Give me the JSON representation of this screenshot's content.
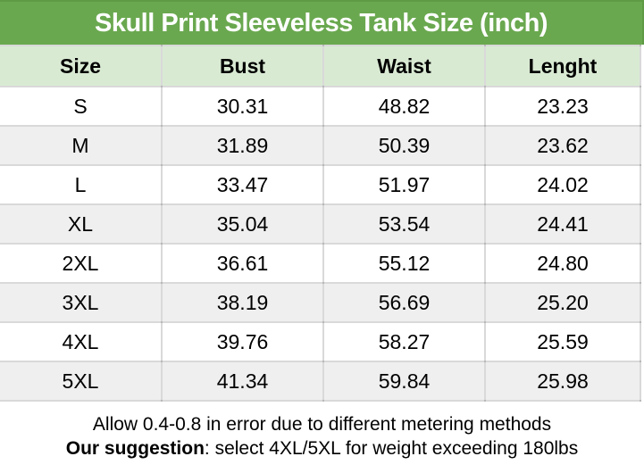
{
  "chart_data": {
    "type": "table",
    "title": "Skull Print Sleeveless Tank Size (inch)",
    "columns": [
      "Size",
      "Bust",
      "Waist",
      "Lenght"
    ],
    "rows": [
      [
        "S",
        "30.31",
        "48.82",
        "23.23"
      ],
      [
        "M",
        "31.89",
        "50.39",
        "23.62"
      ],
      [
        "L",
        "33.47",
        "51.97",
        "24.02"
      ],
      [
        "XL",
        "35.04",
        "53.54",
        "24.41"
      ],
      [
        "2XL",
        "36.61",
        "55.12",
        "24.80"
      ],
      [
        "3XL",
        "38.19",
        "56.69",
        "25.20"
      ],
      [
        "4XL",
        "39.76",
        "58.27",
        "25.59"
      ],
      [
        "5XL",
        "41.34",
        "59.84",
        "25.98"
      ]
    ],
    "footnotes": [
      "Allow 0.4-0.8 in error due to different metering methods",
      "Our suggestion: select 4XL/5XL for weight exceeding 180lbs"
    ],
    "layout": {
      "grid": "on",
      "row_striping": "alternating",
      "header_position": "top"
    }
  },
  "footer": {
    "line1": "Allow 0.4-0.8 in error due to different metering methods",
    "suggestion_label": "Our suggestion",
    "suggestion_rest": ": select 4XL/5XL for weight exceeding 180lbs"
  },
  "colors": {
    "title_bg": "#6aa84f",
    "title_text": "#ffffff",
    "header_row_bg": "#d9ead3",
    "alt_row_bg": "#efefef",
    "row_bg": "#ffffff",
    "grid_line": "#d9d9d9",
    "body_text": "#000000"
  }
}
